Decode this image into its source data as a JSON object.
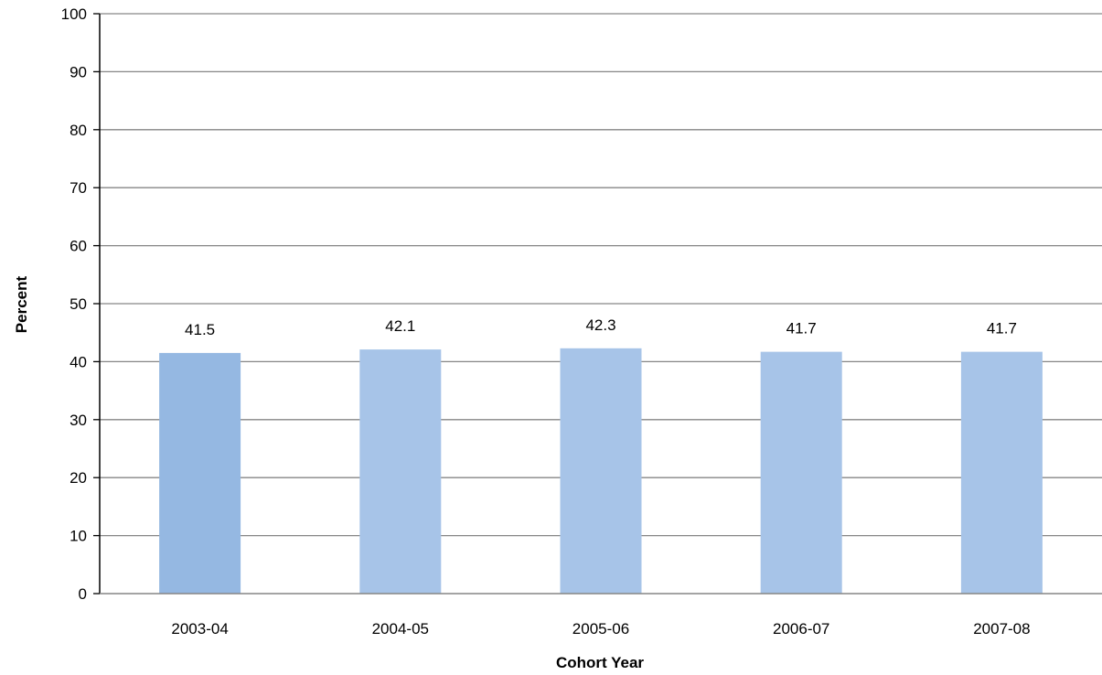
{
  "chart_data": {
    "type": "bar",
    "categories": [
      "2003-04",
      "2004-05",
      "2005-06",
      "2006-07",
      "2007-08"
    ],
    "values": [
      41.5,
      42.1,
      42.3,
      41.7,
      41.7
    ],
    "value_labels": [
      "41.5",
      "42.1",
      "42.3",
      "41.7",
      "41.7"
    ],
    "xlabel": "Cohort Year",
    "ylabel": "Percent",
    "ylim": [
      0,
      100
    ],
    "yticks": [
      "0",
      "10",
      "20",
      "30",
      "40",
      "50",
      "60",
      "70",
      "80",
      "90",
      "100"
    ],
    "grid": true,
    "legend": "none",
    "colors": {
      "bar_first": "#95b8e2",
      "bar": "#a7c4e8",
      "grid": "#868686",
      "axis": "#000000"
    }
  }
}
